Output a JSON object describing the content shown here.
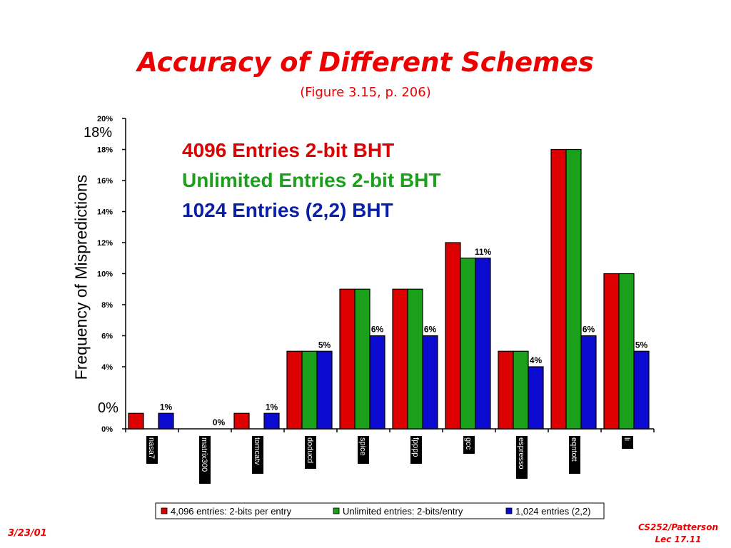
{
  "slide": {
    "title": "Accuracy of Different Schemes",
    "subtitle": "(Figure 3.15, p. 206)",
    "date": "3/23/01",
    "course": "CS252/Patterson",
    "lecture": "Lec 17.11",
    "ylabel": "Frequency of Mispredictions",
    "big_ticks": [
      "18%",
      "0%"
    ],
    "overlay_legend": [
      {
        "text": "4096 Entries 2-bit BHT",
        "color": "#dd0000"
      },
      {
        "text": "Unlimited Entries 2-bit BHT",
        "color": "#1aa01a"
      },
      {
        "text": "1024 Entries (2,2) BHT",
        "color": "#0a1fa8"
      }
    ]
  },
  "chart_data": {
    "type": "bar",
    "categories": [
      "nasa7",
      "matrix300",
      "tomcatv",
      "doducd",
      "spice",
      "fpppp",
      "gcc",
      "espresso",
      "eqntott",
      "li"
    ],
    "series": [
      {
        "name": "4,096 entries: 2-bits per entry",
        "color": "#dd0000",
        "values": [
          1,
          0,
          1,
          5,
          9,
          9,
          12,
          5,
          18,
          10
        ]
      },
      {
        "name": "Unlimited entries: 2-bits/entry",
        "color": "#1aa01a",
        "values": [
          0,
          0,
          0,
          5,
          9,
          9,
          11,
          5,
          18,
          10
        ]
      },
      {
        "name": "1,024 entries (2,2)",
        "color": "#0a0ad0",
        "values": [
          1,
          0,
          1,
          5,
          6,
          6,
          11,
          4,
          6,
          5
        ]
      }
    ],
    "data_labels": [
      "1%",
      "0%",
      "1%",
      "5%",
      "6%",
      "6%",
      "11%",
      "4%",
      "6%",
      "5%"
    ],
    "ytick_labels": [
      "0%",
      "4%",
      "6%",
      "8%",
      "10%",
      "12%",
      "14%",
      "16%",
      "18%",
      "20%"
    ],
    "ylim": [
      0,
      20
    ],
    "grid": false,
    "legend_placement": "bottom"
  }
}
